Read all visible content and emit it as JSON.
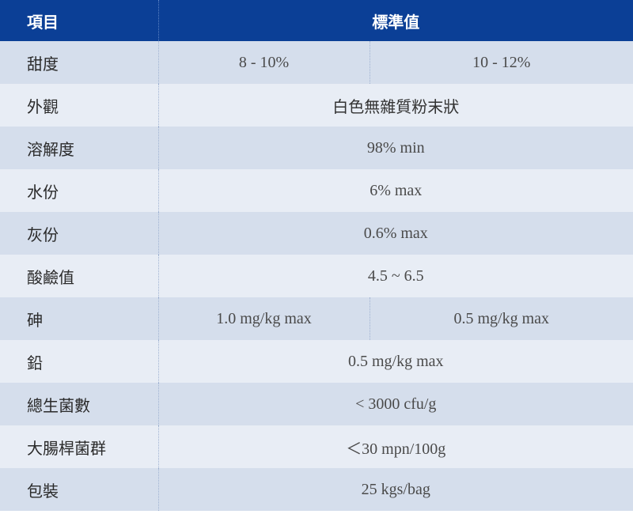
{
  "header": {
    "item_label": "項目",
    "standard_label": "標準值"
  },
  "rows": [
    {
      "item": "甜度",
      "values": [
        "8 - 10%",
        "10 - 12%"
      ]
    },
    {
      "item": "外觀",
      "value": "白色無雜質粉末狀"
    },
    {
      "item": "溶解度",
      "value": "98% min"
    },
    {
      "item": "水份",
      "value": "6% max"
    },
    {
      "item": "灰份",
      "value": "0.6% max"
    },
    {
      "item": "酸鹼值",
      "value": "4.5 ~ 6.5"
    },
    {
      "item": "砷",
      "values": [
        "1.0 mg/kg max",
        "0.5 mg/kg max"
      ]
    },
    {
      "item": "鉛",
      "value": "0.5 mg/kg max"
    },
    {
      "item": "總生菌數",
      "value": "< 3000 cfu/g"
    },
    {
      "item": "大腸桿菌群",
      "value": "＜30 mpn/100g"
    },
    {
      "item": "包裝",
      "value": "25 kgs/bag"
    }
  ]
}
